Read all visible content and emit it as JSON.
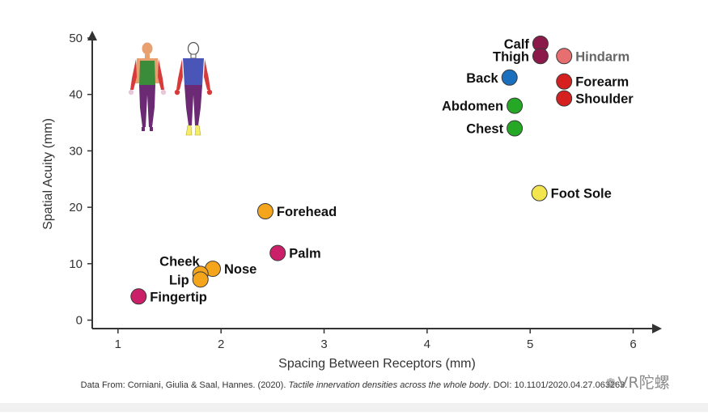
{
  "chart_data": {
    "type": "scatter",
    "xlabel": "Spacing Between Receptors (mm)",
    "ylabel": "Spatial Acuity (mm)",
    "xlim": [
      0.75,
      6.2
    ],
    "ylim": [
      -1.5,
      51
    ],
    "xticks": [
      1,
      2,
      3,
      4,
      5,
      6
    ],
    "yticks": [
      0,
      10,
      20,
      30,
      40,
      50
    ],
    "grid": false,
    "points": [
      {
        "label": "Calf",
        "x": 5.1,
        "y": 49,
        "color": "#8b1a4a",
        "label_side": "left",
        "label_color": "#111111"
      },
      {
        "label": "Thigh",
        "x": 5.1,
        "y": 46.8,
        "color": "#8b1a4a",
        "label_side": "left",
        "label_color": "#111111"
      },
      {
        "label": "Hindarm",
        "x": 5.33,
        "y": 46.8,
        "color": "#e86f6f",
        "label_side": "right",
        "label_color": "#666666"
      },
      {
        "label": "Back",
        "x": 4.8,
        "y": 43,
        "color": "#1b6fbf",
        "label_side": "left",
        "label_color": "#111111"
      },
      {
        "label": "Forearm",
        "x": 5.33,
        "y": 42.3,
        "color": "#d62020",
        "label_side": "right",
        "label_color": "#111111"
      },
      {
        "label": "Shoulder",
        "x": 5.33,
        "y": 39.3,
        "color": "#d62020",
        "label_side": "right",
        "label_color": "#111111"
      },
      {
        "label": "Abdomen",
        "x": 4.85,
        "y": 38,
        "color": "#25a825",
        "label_side": "left",
        "label_color": "#111111"
      },
      {
        "label": "Chest",
        "x": 4.85,
        "y": 34,
        "color": "#25a825",
        "label_side": "left",
        "label_color": "#111111"
      },
      {
        "label": "Foot Sole",
        "x": 5.09,
        "y": 22.5,
        "color": "#f2e550",
        "label_side": "right",
        "label_color": "#111111"
      },
      {
        "label": "Forehead",
        "x": 2.43,
        "y": 19.3,
        "color": "#f5a51c",
        "label_side": "right",
        "label_color": "#111111"
      },
      {
        "label": "Palm",
        "x": 2.55,
        "y": 11.9,
        "color": "#cc1f6a",
        "label_side": "right",
        "label_color": "#111111"
      },
      {
        "label": "Nose",
        "x": 1.92,
        "y": 9.1,
        "color": "#f5a51c",
        "label_side": "right",
        "label_color": "#111111"
      },
      {
        "label": "Cheek",
        "x": 1.8,
        "y": 8.2,
        "color": "#f5a51c",
        "label_side": "left-up",
        "label_color": "#111111"
      },
      {
        "label": "Lip",
        "x": 1.8,
        "y": 7.2,
        "color": "#f5a51c",
        "label_side": "left",
        "label_color": "#111111"
      },
      {
        "label": "Fingertip",
        "x": 1.2,
        "y": 4.2,
        "color": "#cc1f6a",
        "label_side": "right",
        "label_color": "#111111"
      }
    ]
  },
  "footer": {
    "prefix": "Data From: Corniani, Giulia & Saal, Hannes. (2020). ",
    "title": "Tactile innervation densities across the whole body",
    "suffix": ". DOI: 10.1101/2020.04.27.063263."
  },
  "watermark": {
    "icon": "wechat-icon",
    "text": "VR陀螺"
  },
  "colors": {
    "skin": "#e8a070",
    "torso_green": "#3a8c3a",
    "torso_blue": "#4a55b8",
    "limb_red": "#d63a3a",
    "leg_purple": "#6b2a73",
    "foot_yellow": "#f5ec6a"
  }
}
